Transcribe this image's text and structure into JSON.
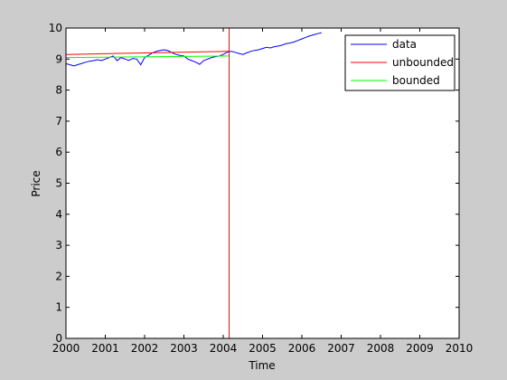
{
  "chart_data": {
    "type": "line",
    "title": "",
    "xlabel": "Time",
    "ylabel": "Price",
    "xlim": [
      2000,
      2010
    ],
    "ylim": [
      0,
      10
    ],
    "xticks": [
      "2000",
      "2001",
      "2002",
      "2003",
      "2004",
      "2005",
      "2006",
      "2007",
      "2008",
      "2009",
      "2010"
    ],
    "yticks": [
      "0",
      "1",
      "2",
      "3",
      "4",
      "5",
      "6",
      "7",
      "8",
      "9",
      "10"
    ],
    "grid": false,
    "legend_position": "top-right",
    "legend": [
      "data",
      "unbounded",
      "bounded"
    ],
    "colors": {
      "data": "#0000ff",
      "unbounded": "#ff0000",
      "bounded": "#00ff00",
      "figure_bg": "#cccccc",
      "axes_bg": "#ffffff"
    },
    "series": [
      {
        "name": "data",
        "color": "#0000ff",
        "x": [
          2000.0,
          2000.1,
          2000.2,
          2000.3,
          2000.4,
          2000.5,
          2000.6,
          2000.7,
          2000.8,
          2000.9,
          2001.0,
          2001.1,
          2001.2,
          2001.3,
          2001.4,
          2001.5,
          2001.6,
          2001.7,
          2001.8,
          2001.9,
          2002.0,
          2002.1,
          2002.2,
          2002.3,
          2002.4,
          2002.5,
          2002.6,
          2002.7,
          2002.8,
          2002.9,
          2003.0,
          2003.1,
          2003.2,
          2003.3,
          2003.4,
          2003.5,
          2003.6,
          2003.7,
          2003.8,
          2003.9,
          2004.0,
          2004.1,
          2004.2,
          2004.3,
          2004.4,
          2004.5,
          2004.6,
          2004.7,
          2004.8,
          2004.9,
          2005.0,
          2005.1,
          2005.2,
          2005.3,
          2005.4,
          2005.5,
          2005.6,
          2005.7,
          2005.8,
          2005.9,
          2006.0,
          2006.1,
          2006.2,
          2006.3,
          2006.4,
          2006.5
        ],
        "y": [
          8.85,
          8.82,
          8.78,
          8.82,
          8.86,
          8.9,
          8.93,
          8.95,
          8.98,
          8.95,
          9.0,
          9.05,
          9.1,
          8.95,
          9.05,
          9.0,
          8.96,
          9.02,
          9.0,
          8.82,
          9.05,
          9.12,
          9.2,
          9.25,
          9.28,
          9.3,
          9.27,
          9.2,
          9.15,
          9.12,
          9.1,
          9.0,
          8.95,
          8.9,
          8.83,
          8.95,
          9.0,
          9.05,
          9.08,
          9.1,
          9.15,
          9.22,
          9.25,
          9.22,
          9.18,
          9.15,
          9.2,
          9.25,
          9.28,
          9.3,
          9.34,
          9.38,
          9.36,
          9.4,
          9.42,
          9.45,
          9.5,
          9.52,
          9.55,
          9.6,
          9.65,
          9.7,
          9.75,
          9.78,
          9.82,
          9.85
        ]
      },
      {
        "name": "unbounded",
        "color": "#ff0000",
        "x": [
          2000.0,
          2004.15
        ],
        "y": [
          9.15,
          9.25
        ]
      },
      {
        "name": "bounded",
        "color": "#00ff00",
        "x": [
          2000.0,
          2004.15
        ],
        "y": [
          9.05,
          9.1
        ]
      }
    ],
    "annotations": [
      {
        "kind": "vertical-line",
        "x": 2004.15,
        "color": "#ff0000"
      },
      {
        "kind": "vertical-line",
        "x": 2010.0,
        "color": "#00ff00"
      }
    ]
  }
}
